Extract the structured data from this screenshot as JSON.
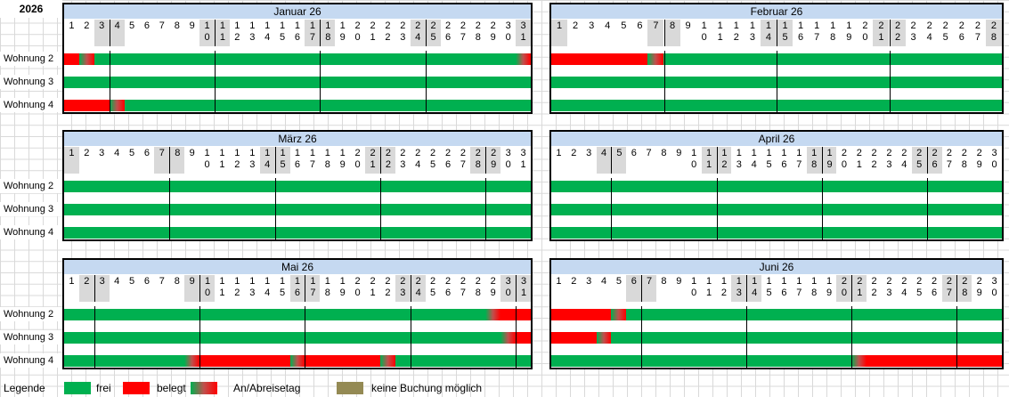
{
  "year": "2026",
  "apartments": [
    "Wohnung 2",
    "Wohnung 3",
    "Wohnung 4"
  ],
  "colors": {
    "frei": "#00b050",
    "belegt": "#ff0000",
    "keine": "#948a54",
    "header": "#c5d9f1",
    "weekend": "#d9d9d9"
  },
  "months": [
    {
      "title": "Januar 26",
      "days": 31,
      "shaded": [
        3,
        4,
        10,
        11,
        17,
        18,
        24,
        25,
        31
      ],
      "week_starts": [
        4,
        11,
        18,
        25
      ],
      "bookings": [
        [
          {
            "from": 1,
            "to": 1,
            "type": "belegt"
          },
          {
            "from": 2,
            "to": 2,
            "type": "wechsel"
          },
          {
            "from": 31,
            "to": 31,
            "type": "wechsel"
          }
        ],
        [],
        [
          {
            "from": 1,
            "to": 3,
            "type": "belegt"
          },
          {
            "from": 4,
            "to": 4,
            "type": "wechsel"
          }
        ]
      ]
    },
    {
      "title": "Februar 26",
      "days": 28,
      "shaded": [
        1,
        7,
        8,
        14,
        15,
        21,
        22,
        28
      ],
      "week_starts": [
        8,
        15,
        22
      ],
      "bookings": [
        [
          {
            "from": 1,
            "to": 6,
            "type": "belegt"
          },
          {
            "from": 7,
            "to": 7,
            "type": "wechsel"
          }
        ],
        [],
        []
      ]
    },
    {
      "title": "März 26",
      "days": 31,
      "shaded": [
        1,
        7,
        8,
        14,
        15,
        21,
        22,
        28,
        29
      ],
      "week_starts": [
        8,
        15,
        22,
        29
      ],
      "bookings": [
        [],
        [],
        []
      ]
    },
    {
      "title": "April 26",
      "days": 30,
      "shaded": [
        4,
        5,
        11,
        12,
        18,
        19,
        25,
        26
      ],
      "week_starts": [
        5,
        12,
        19,
        26
      ],
      "bookings": [
        [],
        [],
        []
      ]
    },
    {
      "title": "Mai 26",
      "days": 31,
      "shaded": [
        2,
        3,
        9,
        10,
        16,
        17,
        23,
        24,
        30,
        31
      ],
      "week_starts": [
        3,
        10,
        17,
        24,
        31
      ],
      "bookings": [
        [
          {
            "from": 29,
            "to": 29,
            "type": "wechsel"
          },
          {
            "from": 30,
            "to": 31,
            "type": "belegt"
          }
        ],
        [
          {
            "from": 30,
            "to": 30,
            "type": "wechsel"
          },
          {
            "from": 31,
            "to": 31,
            "type": "belegt"
          }
        ],
        [
          {
            "from": 9,
            "to": 9,
            "type": "wechsel"
          },
          {
            "from": 10,
            "to": 15,
            "type": "belegt"
          },
          {
            "from": 16,
            "to": 16,
            "type": "wechsel"
          },
          {
            "from": 17,
            "to": 21,
            "type": "belegt"
          },
          {
            "from": 22,
            "to": 22,
            "type": "wechsel"
          }
        ]
      ]
    },
    {
      "title": "Juni 26",
      "days": 30,
      "shaded": [
        6,
        7,
        13,
        14,
        20,
        21,
        27,
        28
      ],
      "week_starts": [
        7,
        14,
        21,
        28
      ],
      "bookings": [
        [
          {
            "from": 1,
            "to": 4,
            "type": "belegt"
          },
          {
            "from": 5,
            "to": 5,
            "type": "wechsel"
          }
        ],
        [
          {
            "from": 1,
            "to": 3,
            "type": "belegt"
          },
          {
            "from": 4,
            "to": 4,
            "type": "wechsel"
          }
        ],
        [
          {
            "from": 21,
            "to": 21,
            "type": "wechsel"
          },
          {
            "from": 22,
            "to": 30,
            "type": "belegt"
          }
        ]
      ]
    }
  ],
  "legend": {
    "title": "Legende",
    "frei": "frei",
    "belegt": "belegt",
    "wechsel": "An/Abreisetag",
    "keine": "keine Buchung möglich"
  }
}
